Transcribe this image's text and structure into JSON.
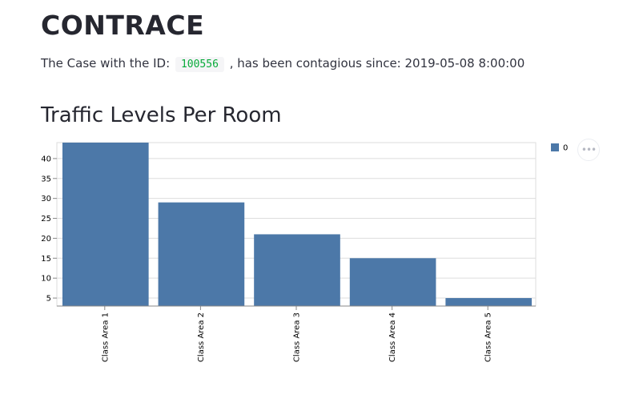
{
  "app": {
    "title": "CONTRACE"
  },
  "case": {
    "prefix": "The Case with the ID:",
    "id": "100556",
    "suffix": ", has been contagious since: 2019-05-08 8:00:00"
  },
  "section": {
    "title": "Traffic Levels Per Room"
  },
  "menu": {
    "icon": "ellipsis-icon",
    "glyph": "•••"
  },
  "chart_data": {
    "type": "bar",
    "categories": [
      "Class Area 1",
      "Class Area 2",
      "Class Area 3",
      "Class Area 4",
      "Class Area 5"
    ],
    "series": [
      {
        "name": "0",
        "values": [
          44,
          29,
          21,
          15,
          5
        ],
        "color": "#4c78a8"
      }
    ],
    "ylim": [
      3,
      44
    ],
    "yticks": [
      5,
      10,
      15,
      20,
      25,
      30,
      35,
      40
    ],
    "grid": true,
    "legend": "top-right",
    "xlabel": "",
    "ylabel": ""
  }
}
